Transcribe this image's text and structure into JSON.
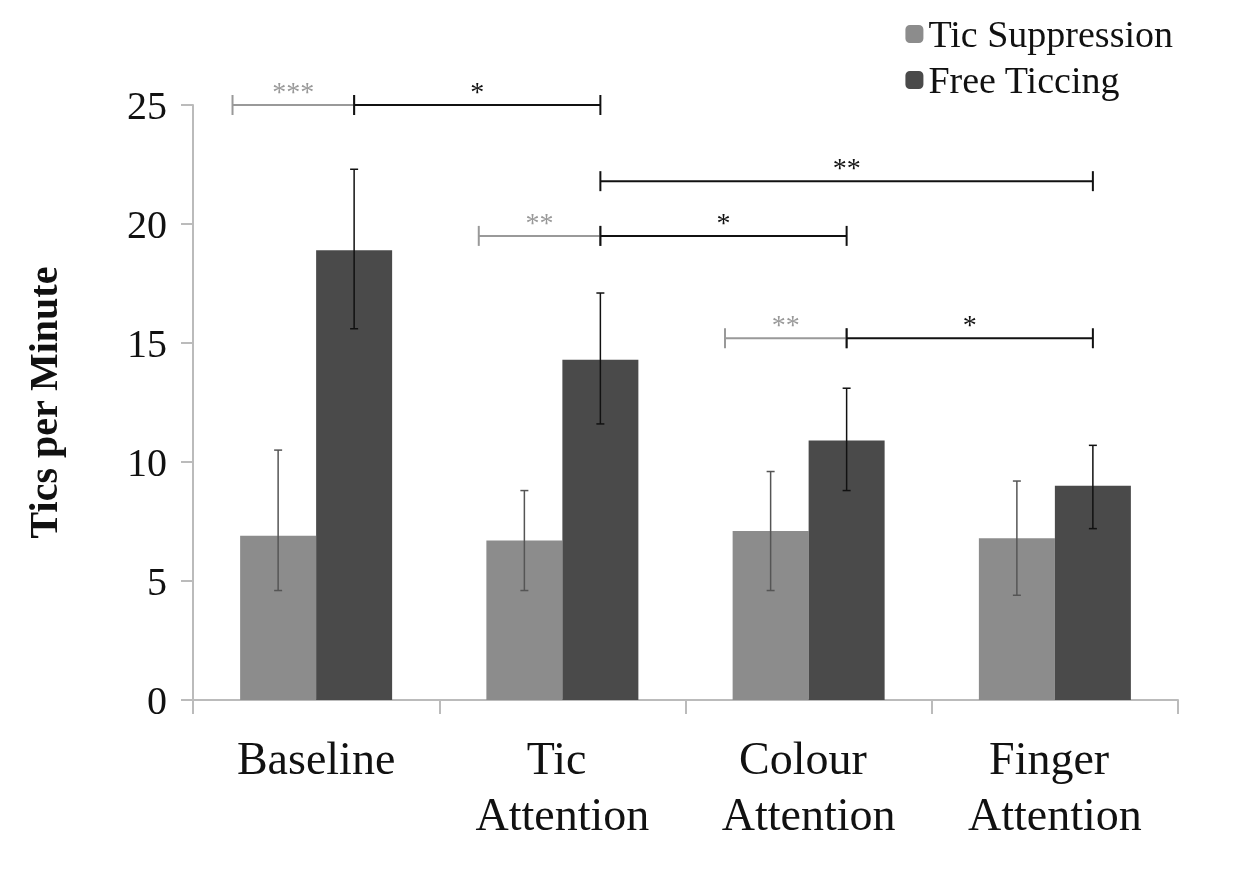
{
  "chart_data": {
    "type": "bar",
    "ylabel": "Tics per Minute",
    "categories": [
      "Baseline",
      "Tic Attention",
      "Colour Attention",
      "Finger Attention"
    ],
    "series": [
      {
        "name": "Tic Suppression",
        "color": "#8c8c8c",
        "values": [
          6.9,
          6.7,
          7.1,
          6.8
        ],
        "errors": [
          [
            4.6,
            10.5
          ],
          [
            4.6,
            8.8
          ],
          [
            4.6,
            9.6
          ],
          [
            4.4,
            9.2
          ]
        ]
      },
      {
        "name": "Free Ticcing",
        "color": "#4a4a4a",
        "values": [
          18.9,
          14.3,
          10.9,
          9.0
        ],
        "errors": [
          [
            15.6,
            22.3
          ],
          [
            11.6,
            17.1
          ],
          [
            8.8,
            13.1
          ],
          [
            7.2,
            10.7
          ]
        ]
      }
    ],
    "ylim": [
      0,
      25
    ],
    "yticks": [
      0,
      5,
      10,
      15,
      20,
      25
    ],
    "grid": false,
    "legend": "top right",
    "annotations": [
      "***",
      "*",
      "**",
      "**",
      "*",
      "**",
      "*"
    ]
  }
}
